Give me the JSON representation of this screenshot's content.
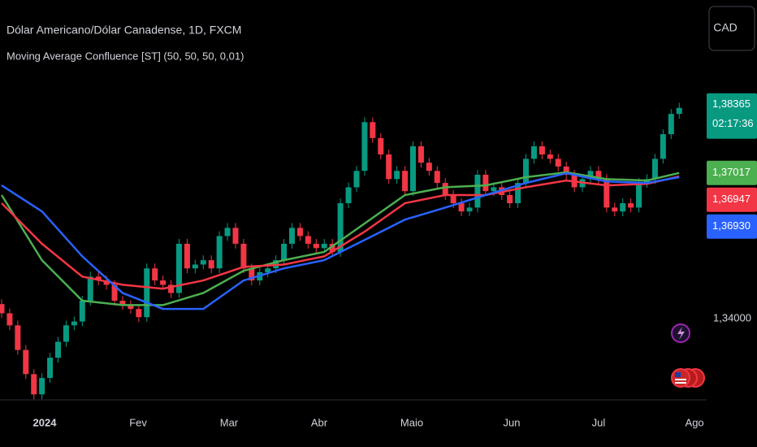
{
  "chart_data": {
    "type": "candlestick",
    "title": "Dólar Americano/Dólar Canadense, 1D, FXCM",
    "subtitle": "Moving Average Confluence [ST] (50, 50, 50, 0,01)",
    "currency_button": "CAD",
    "up_color": "#089981",
    "down_color": "#f23645",
    "xlim": [
      -0.2,
      87.4
    ],
    "ylim": [
      1.3235,
      1.406
    ],
    "xticks": [
      {
        "value": 5.34,
        "label": "2024"
      },
      {
        "value": 16.92,
        "label": "Fev"
      },
      {
        "value": 28.19,
        "label": "Mar"
      },
      {
        "value": 39.37,
        "label": "Abr"
      },
      {
        "value": 50.85,
        "label": "Maio"
      },
      {
        "value": 63.23,
        "label": "Jun"
      },
      {
        "value": 74.0,
        "label": "Jul"
      },
      {
        "value": 85.9,
        "label": "Ago"
      }
    ],
    "yticks": [
      {
        "value": 1.34,
        "label": "1,34000"
      }
    ],
    "last_price": {
      "value": 1.38365,
      "label": "1,38365",
      "countdown": "02:17:36"
    },
    "open": [
      1.343,
      1.3411,
      1.3386,
      1.3335,
      1.3285,
      1.3243,
      1.3277,
      1.3319,
      1.3352,
      1.3386,
      1.3394,
      1.3437,
      1.3487,
      1.3479,
      1.347,
      1.3437,
      1.3428,
      1.342,
      1.3403,
      1.3504,
      1.3479,
      1.347,
      1.3453,
      1.3555,
      1.3504,
      1.3512,
      1.3521,
      1.3504,
      1.3571,
      1.3588,
      1.3555,
      1.3504,
      1.3479,
      1.3496,
      1.3504,
      1.3521,
      1.3555,
      1.3588,
      1.3571,
      1.3555,
      1.3546,
      1.3555,
      1.3538,
      1.3639,
      1.3672,
      1.3706,
      1.3807,
      1.3774,
      1.374,
      1.3689,
      1.3706,
      1.3664,
      1.3757,
      1.3723,
      1.3706,
      1.3681,
      1.3656,
      1.3639,
      1.3622,
      1.363,
      1.3698,
      1.3664,
      1.3672,
      1.3656,
      1.3639,
      1.3681,
      1.3731,
      1.3757,
      1.374,
      1.3731,
      1.3715,
      1.3698,
      1.3672,
      1.3689,
      1.3706,
      1.3689,
      1.363,
      1.3622,
      1.3639,
      1.363,
      1.3681,
      1.3689,
      1.3731,
      1.3782,
      1.3824
    ],
    "high": [
      1.344,
      1.3421,
      1.3396,
      1.3345,
      1.3295,
      1.3287,
      1.3329,
      1.3362,
      1.3396,
      1.3404,
      1.3447,
      1.3497,
      1.3497,
      1.3489,
      1.348,
      1.3447,
      1.3438,
      1.343,
      1.3514,
      1.3514,
      1.3489,
      1.348,
      1.3565,
      1.3565,
      1.3522,
      1.3531,
      1.3531,
      1.3581,
      1.3598,
      1.3598,
      1.3565,
      1.3514,
      1.3506,
      1.3514,
      1.3531,
      1.3565,
      1.3598,
      1.3598,
      1.3581,
      1.3565,
      1.3565,
      1.3565,
      1.3649,
      1.3682,
      1.3716,
      1.3817,
      1.3817,
      1.3784,
      1.375,
      1.3716,
      1.3716,
      1.3767,
      1.3767,
      1.3733,
      1.3716,
      1.3691,
      1.3666,
      1.3649,
      1.364,
      1.3708,
      1.3708,
      1.3682,
      1.3682,
      1.3666,
      1.3691,
      1.3741,
      1.3767,
      1.3767,
      1.375,
      1.3741,
      1.3725,
      1.3708,
      1.3699,
      1.3716,
      1.3716,
      1.3699,
      1.364,
      1.3649,
      1.3649,
      1.3691,
      1.3699,
      1.3741,
      1.3792,
      1.3834,
      1.3847
    ],
    "low": [
      1.3401,
      1.3376,
      1.3325,
      1.3275,
      1.3233,
      1.3233,
      1.3267,
      1.3309,
      1.3342,
      1.3376,
      1.3384,
      1.3427,
      1.3469,
      1.346,
      1.3427,
      1.3418,
      1.341,
      1.3393,
      1.3393,
      1.3469,
      1.346,
      1.3443,
      1.3443,
      1.3494,
      1.3494,
      1.3502,
      1.3494,
      1.3494,
      1.3561,
      1.3545,
      1.3494,
      1.3469,
      1.3469,
      1.3486,
      1.3494,
      1.3511,
      1.3545,
      1.3561,
      1.3545,
      1.3536,
      1.3536,
      1.3528,
      1.3528,
      1.3629,
      1.3662,
      1.3696,
      1.3764,
      1.373,
      1.3679,
      1.3679,
      1.3654,
      1.3654,
      1.3713,
      1.3696,
      1.3671,
      1.3646,
      1.3629,
      1.3612,
      1.3612,
      1.362,
      1.3654,
      1.3654,
      1.3646,
      1.3629,
      1.3629,
      1.3671,
      1.3721,
      1.373,
      1.3721,
      1.3705,
      1.3688,
      1.3662,
      1.3662,
      1.3679,
      1.3679,
      1.362,
      1.3612,
      1.3612,
      1.362,
      1.362,
      1.3671,
      1.3679,
      1.3721,
      1.3772,
      1.3814
    ],
    "close": [
      1.3411,
      1.3386,
      1.3335,
      1.3285,
      1.3243,
      1.3277,
      1.3319,
      1.3352,
      1.3386,
      1.3394,
      1.3437,
      1.3487,
      1.3479,
      1.347,
      1.3437,
      1.3428,
      1.342,
      1.3403,
      1.3504,
      1.3479,
      1.347,
      1.3453,
      1.3555,
      1.3504,
      1.3512,
      1.3521,
      1.3504,
      1.3571,
      1.3588,
      1.3555,
      1.3504,
      1.3479,
      1.3496,
      1.3504,
      1.3521,
      1.3555,
      1.3588,
      1.3571,
      1.3555,
      1.3546,
      1.3555,
      1.3538,
      1.3639,
      1.3672,
      1.3706,
      1.3807,
      1.3774,
      1.374,
      1.3689,
      1.3706,
      1.3664,
      1.3757,
      1.3723,
      1.3706,
      1.3681,
      1.3656,
      1.3639,
      1.3622,
      1.363,
      1.3698,
      1.3664,
      1.3672,
      1.3656,
      1.3639,
      1.3681,
      1.3731,
      1.3757,
      1.374,
      1.3731,
      1.3715,
      1.3698,
      1.3672,
      1.3689,
      1.3706,
      1.3689,
      1.363,
      1.3622,
      1.3639,
      1.363,
      1.3681,
      1.3689,
      1.3731,
      1.3782,
      1.3824,
      1.38365
    ],
    "series": [
      {
        "color": "#4caf50",
        "x": [
          0,
          5,
          10,
          15,
          20,
          25,
          30,
          35,
          40,
          45,
          50,
          55,
          60,
          65,
          70,
          75,
          80,
          84
        ],
        "values": [
          1.3656,
          1.3521,
          1.3437,
          1.3428,
          1.3428,
          1.3453,
          1.3499,
          1.3521,
          1.3538,
          1.3597,
          1.3656,
          1.3672,
          1.3676,
          1.3693,
          1.3703,
          1.3689,
          1.3686,
          1.37017
        ],
        "last_label": "1,37017"
      },
      {
        "color": "#f23645",
        "x": [
          0,
          5,
          10,
          15,
          20,
          25,
          30,
          35,
          40,
          45,
          50,
          55,
          60,
          65,
          70,
          75,
          80,
          84
        ],
        "values": [
          1.3639,
          1.3555,
          1.3487,
          1.347,
          1.3462,
          1.3479,
          1.3507,
          1.3512,
          1.3529,
          1.358,
          1.3639,
          1.3656,
          1.3656,
          1.3672,
          1.3686,
          1.3676,
          1.3679,
          1.36947
        ],
        "last_label": "1,36947"
      },
      {
        "color": "#2962ff",
        "x": [
          0,
          5,
          10,
          15,
          20,
          25,
          30,
          35,
          40,
          45,
          50,
          55,
          60,
          65,
          70,
          75,
          80,
          84
        ],
        "values": [
          1.3676,
          1.3622,
          1.3529,
          1.3453,
          1.342,
          1.342,
          1.3479,
          1.3504,
          1.3521,
          1.3563,
          1.3605,
          1.363,
          1.3656,
          1.3681,
          1.3701,
          1.3684,
          1.3681,
          1.3693
        ],
        "last_label": "1,36930"
      }
    ]
  }
}
